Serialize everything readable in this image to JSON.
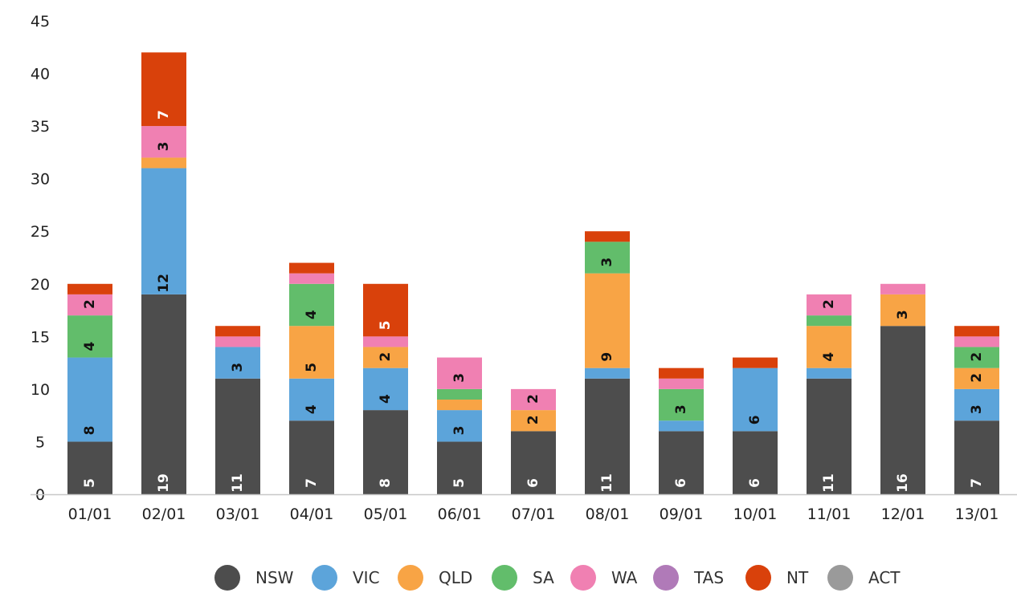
{
  "chart_data": {
    "type": "bar",
    "stacked": true,
    "title": "",
    "xlabel": "",
    "ylabel": "",
    "ylim": [
      0,
      45
    ],
    "yticks": [
      0,
      5,
      10,
      15,
      20,
      25,
      30,
      35,
      40,
      45
    ],
    "grid": false,
    "legend_position": "bottom",
    "categories": [
      "01/01",
      "02/01",
      "03/01",
      "04/01",
      "05/01",
      "06/01",
      "07/01",
      "08/01",
      "09/01",
      "10/01",
      "11/01",
      "12/01",
      "13/01"
    ],
    "series": [
      {
        "name": "NSW",
        "color": "#4d4d4d",
        "label_color": "#ffffff",
        "values": [
          5,
          19,
          11,
          7,
          8,
          5,
          6,
          11,
          6,
          6,
          11,
          16,
          7
        ]
      },
      {
        "name": "VIC",
        "color": "#5ca4da",
        "label_color": "#111111",
        "values": [
          8,
          12,
          3,
          4,
          4,
          3,
          0,
          1,
          1,
          6,
          1,
          0,
          3
        ]
      },
      {
        "name": "QLD",
        "color": "#f8a445",
        "label_color": "#111111",
        "values": [
          0,
          1,
          0,
          5,
          2,
          1,
          2,
          9,
          0,
          0,
          4,
          3,
          2
        ]
      },
      {
        "name": "SA",
        "color": "#62bd6b",
        "label_color": "#111111",
        "values": [
          4,
          0,
          0,
          4,
          0,
          1,
          0,
          3,
          3,
          0,
          1,
          0,
          2
        ]
      },
      {
        "name": "WA",
        "color": "#f080b2",
        "label_color": "#111111",
        "values": [
          2,
          3,
          1,
          1,
          1,
          3,
          2,
          0,
          1,
          0,
          2,
          1,
          1
        ]
      },
      {
        "name": "TAS",
        "color": "#b07ab8",
        "label_color": "#111111",
        "values": [
          0,
          0,
          0,
          0,
          0,
          0,
          0,
          0,
          0,
          0,
          0,
          0,
          0
        ]
      },
      {
        "name": "NT",
        "color": "#d9410b",
        "label_color": "#ffffff",
        "values": [
          1,
          7,
          1,
          1,
          5,
          0,
          0,
          1,
          1,
          1,
          0,
          0,
          1
        ]
      },
      {
        "name": "ACT",
        "color": "#9a9a9a",
        "label_color": "#111111",
        "values": [
          0,
          0,
          0,
          0,
          0,
          0,
          0,
          0,
          0,
          0,
          0,
          0,
          0
        ]
      }
    ],
    "label_min_value": 2
  }
}
